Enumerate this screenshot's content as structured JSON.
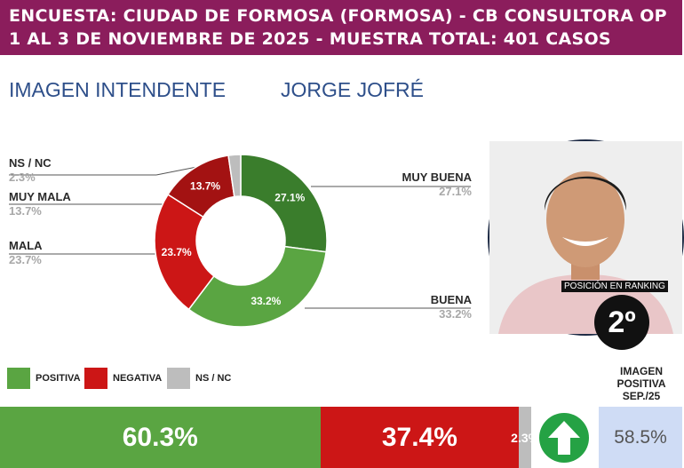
{
  "header": {
    "line1": "ENCUESTA: CIUDAD DE FORMOSA (FORMOSA) - CB CONSULTORA OP",
    "line2": "1 AL 3 DE NOVIEMBRE DE 2025 - MUESTRA TOTAL: 401 CASOS"
  },
  "section": {
    "left_title": "IMAGEN INTENDENTE",
    "right_title": "JORGE JOFRÉ"
  },
  "ranking": {
    "label": "POSICIÓN EN RANKING",
    "value": "2º"
  },
  "legend": [
    {
      "label": "POSITIVA",
      "color": "#5aa542"
    },
    {
      "label": "NEGATIVA",
      "color": "#cc1616"
    },
    {
      "label": "NS / NC",
      "color": "#bdbdbd"
    }
  ],
  "chart_data": [
    {
      "type": "pie",
      "categories": [
        "MUY BUENA",
        "BUENA",
        "MALA",
        "MUY MALA",
        "NS / NC"
      ],
      "values": [
        27.1,
        33.2,
        23.7,
        13.7,
        2.3
      ],
      "labels": [
        "27.1%",
        "33.2%",
        "23.7%",
        "13.7%",
        "2.3%"
      ],
      "slice_labels": [
        "27.1%",
        "33.2%",
        "23.7%",
        "13.7%",
        ""
      ],
      "colors": [
        "#3a7d2c",
        "#5aa542",
        "#cc1616",
        "#a31212",
        "#bdbdbd"
      ]
    },
    {
      "type": "bar",
      "categories": [
        "POSITIVA",
        "NEGATIVA",
        "NS / NC"
      ],
      "values": [
        60.3,
        37.4,
        2.3
      ],
      "labels": [
        "60.3%",
        "37.4%",
        "2.3%"
      ],
      "colors": [
        "#5aa542",
        "#cc1616",
        "#bdbdbd"
      ]
    }
  ],
  "previous": {
    "title_lines": [
      "IMAGEN",
      "POSITIVA",
      "SEP./25"
    ],
    "value": "58.5%",
    "trend_icon": "up-arrow-icon",
    "trend_color": "#25a244"
  }
}
